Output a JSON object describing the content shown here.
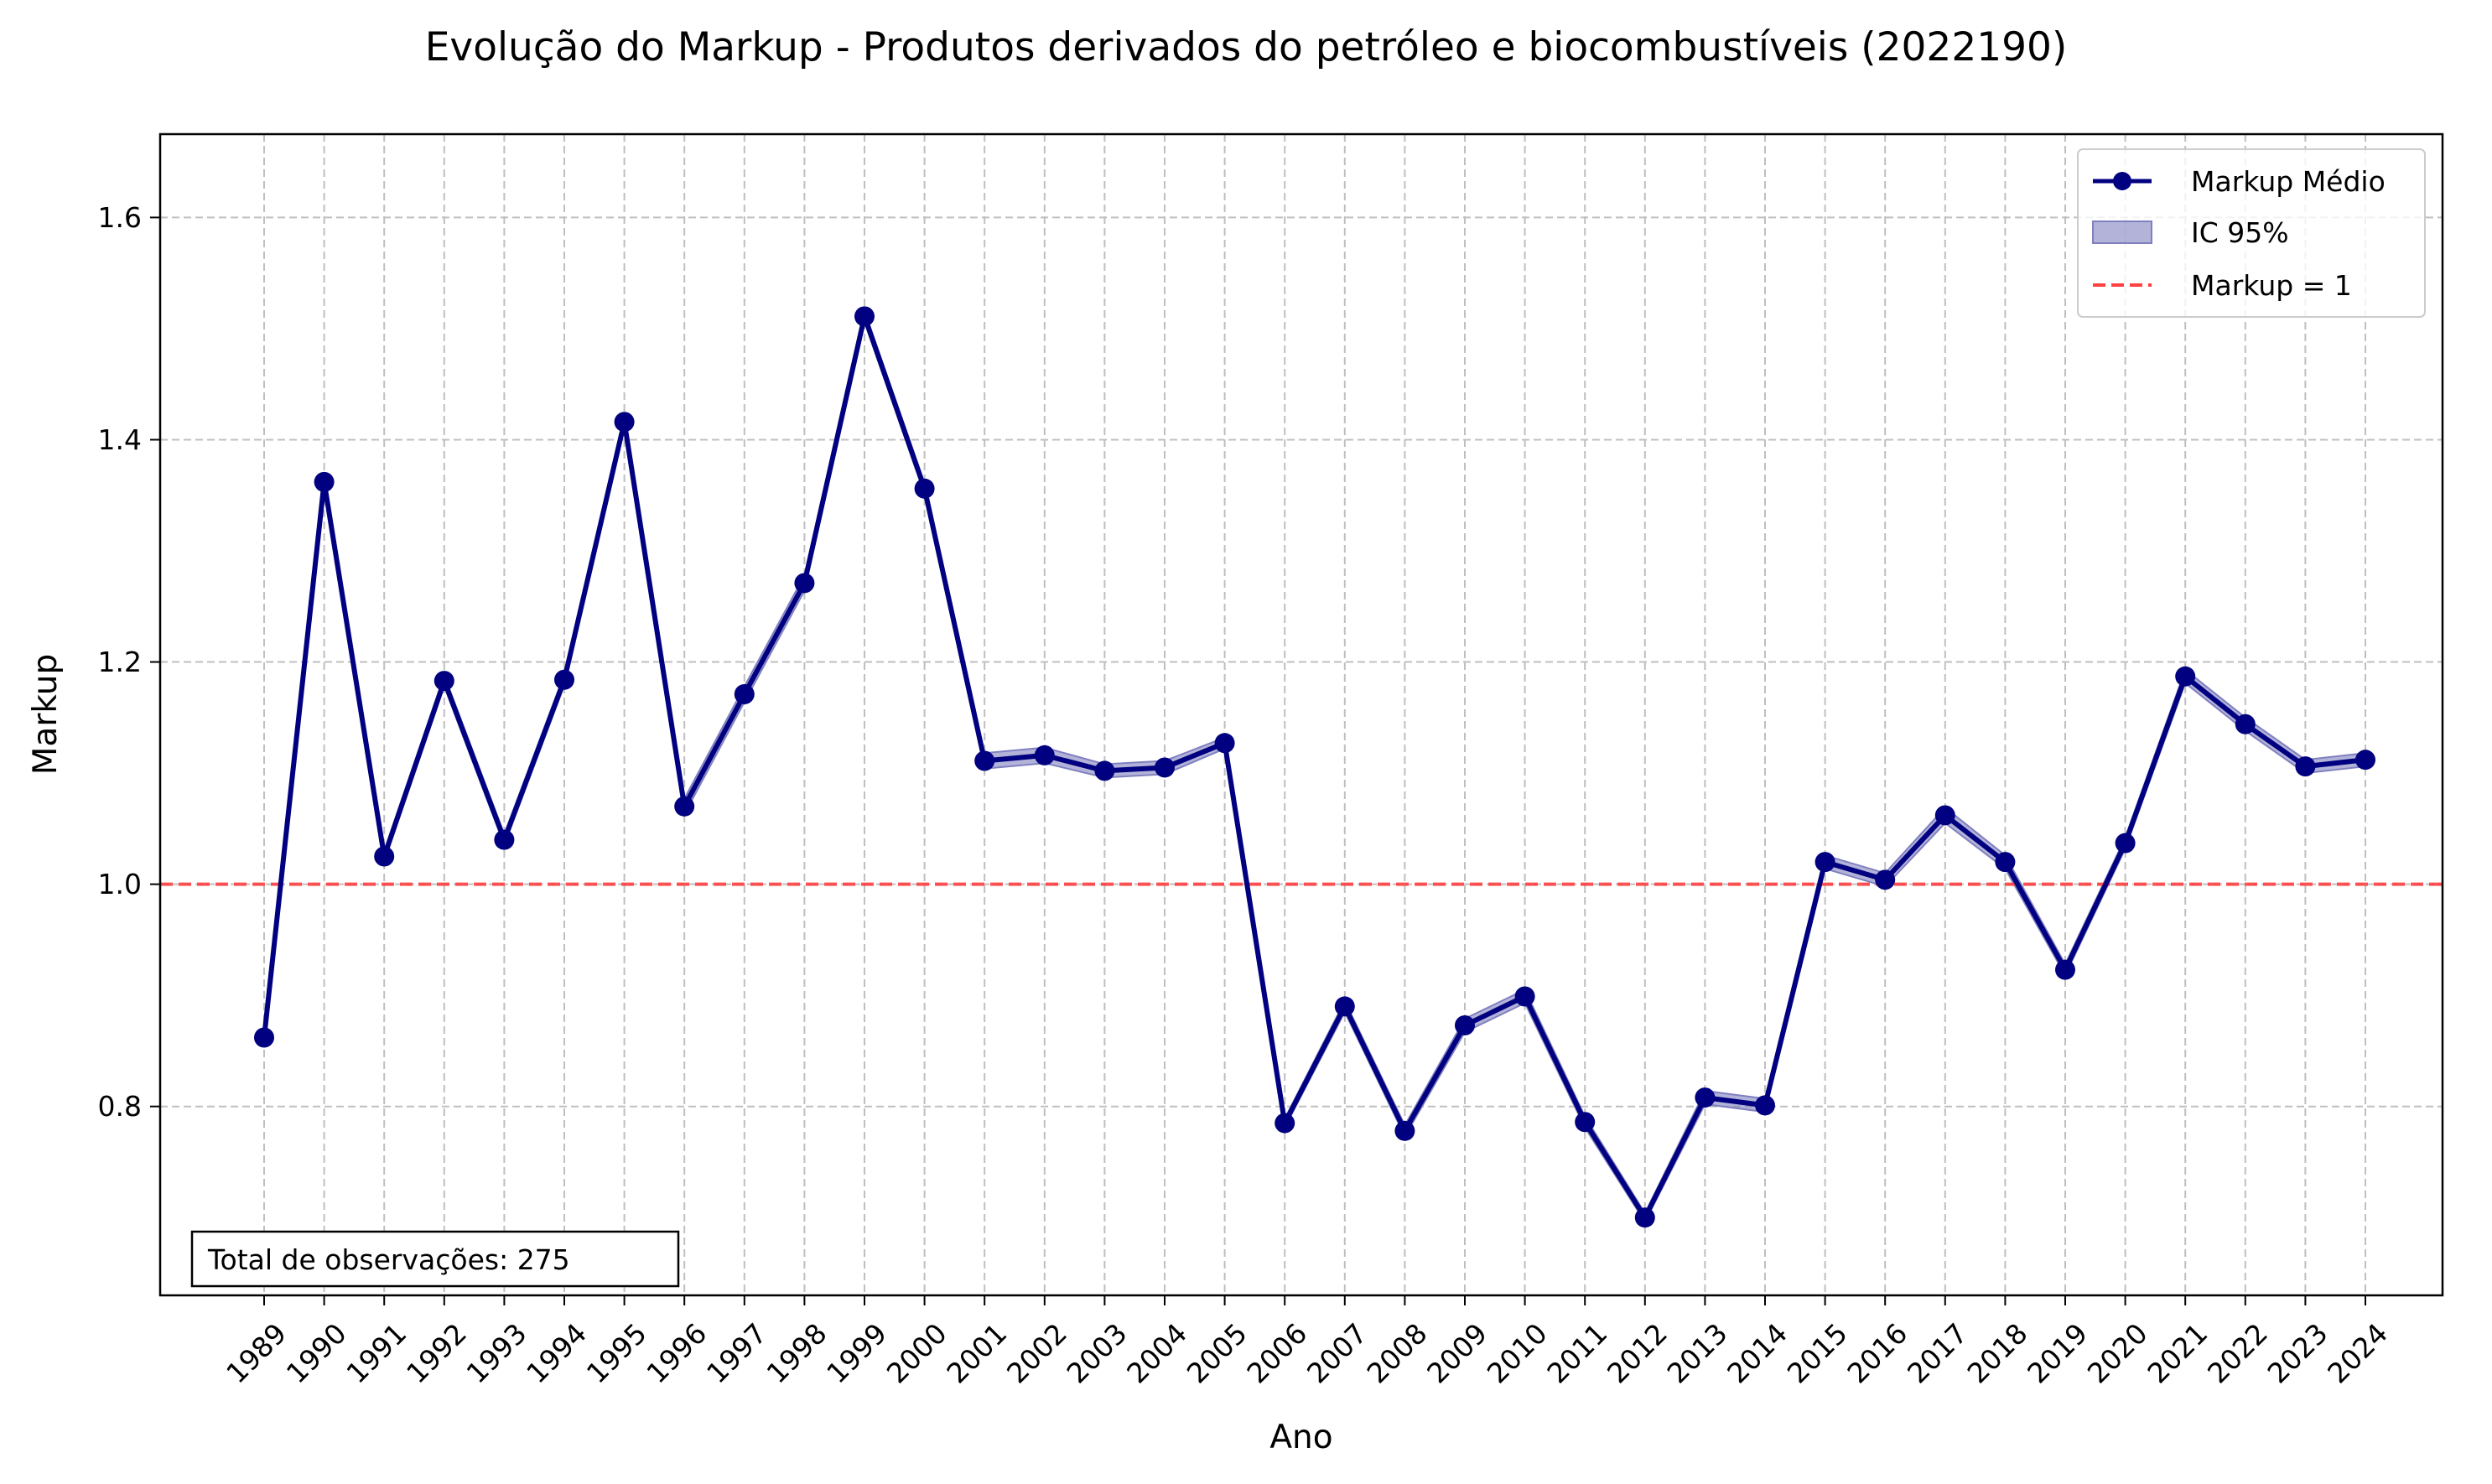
{
  "colors": {
    "series_line": "#000080",
    "ci_fill": "#8080c0",
    "reference_line": "#ff4040",
    "grid": "#bfbfbf"
  },
  "chart_data": {
    "type": "line",
    "title": "Evolução do Markup - Produtos derivados do petróleo e biocombustíveis (2022190)",
    "xlabel": "Ano",
    "ylabel": "Markup",
    "x": [
      "1989",
      "1990",
      "1991",
      "1992",
      "1993",
      "1994",
      "1995",
      "1996",
      "1997",
      "1998",
      "1999",
      "2000",
      "2001",
      "2002",
      "2003",
      "2004",
      "2005",
      "2006",
      "2007",
      "2008",
      "2009",
      "2010",
      "2011",
      "2012",
      "2013",
      "2014",
      "2015",
      "2016",
      "2017",
      "2018",
      "2019",
      "2020",
      "2021",
      "2022",
      "2023",
      "2024"
    ],
    "ylim": [
      0.63,
      1.675
    ],
    "yticks": [
      "0.8",
      "1.0",
      "1.2",
      "1.4",
      "1.6"
    ],
    "grid": true,
    "legend_position": "top-right",
    "series": [
      {
        "name": "Markup Médio",
        "values": [
          0.862,
          1.362,
          1.025,
          1.183,
          1.04,
          1.184,
          1.416,
          1.07,
          1.171,
          1.271,
          1.511,
          1.356,
          1.111,
          1.116,
          1.102,
          1.105,
          1.127,
          0.785,
          0.89,
          0.778,
          0.873,
          0.899,
          0.786,
          0.7,
          0.808,
          0.801,
          1.02,
          1.004,
          1.062,
          1.02,
          0.923,
          1.037,
          1.187,
          1.144,
          1.106,
          1.112
        ],
        "ci_lower": [
          0.86,
          1.358,
          1.02,
          1.178,
          1.035,
          1.179,
          1.411,
          1.063,
          1.164,
          1.264,
          1.506,
          1.351,
          1.104,
          1.109,
          1.096,
          1.099,
          1.122,
          0.781,
          0.885,
          0.773,
          0.867,
          0.893,
          0.781,
          0.696,
          0.802,
          0.795,
          1.014,
          0.998,
          1.055,
          1.014,
          0.918,
          1.032,
          1.181,
          1.138,
          1.1,
          1.106
        ],
        "ci_upper": [
          0.864,
          1.366,
          1.03,
          1.188,
          1.045,
          1.189,
          1.421,
          1.077,
          1.178,
          1.278,
          1.516,
          1.361,
          1.118,
          1.123,
          1.108,
          1.111,
          1.132,
          0.789,
          0.895,
          0.783,
          0.879,
          0.905,
          0.791,
          0.704,
          0.814,
          0.807,
          1.026,
          1.01,
          1.069,
          1.026,
          0.928,
          1.042,
          1.193,
          1.15,
          1.112,
          1.118
        ]
      }
    ],
    "reference_value": 1.0,
    "legend": {
      "series_label": "Markup Médio",
      "ci_label": "IC 95%",
      "reference_label": "Markup = 1"
    },
    "annotation": "Total de observações: 275"
  }
}
